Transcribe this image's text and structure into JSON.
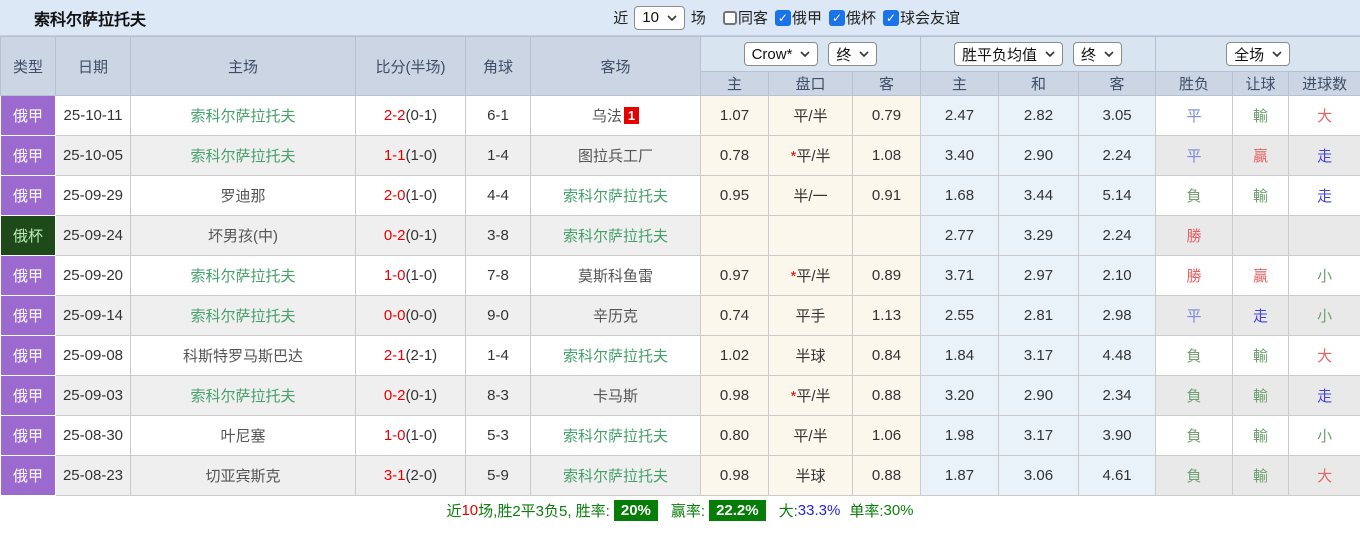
{
  "header": {
    "title": "索科尔萨拉托夫",
    "recent_label": "近",
    "recent_value": "10",
    "matches_label": "场",
    "checkboxes": [
      {
        "key": "same-away",
        "label": "同客",
        "checked": false
      },
      {
        "key": "russia-fnl",
        "label": "俄甲",
        "checked": true
      },
      {
        "key": "russia-cup",
        "label": "俄杯",
        "checked": true
      },
      {
        "key": "club-friendly",
        "label": "球会友谊",
        "checked": true
      }
    ]
  },
  "table": {
    "columns": [
      "类型",
      "日期",
      "主场",
      "比分(半场)",
      "角球",
      "客场"
    ],
    "odds_company_select": "Crow*",
    "odds_time_select": "终",
    "avg_type_select": "胜平负均值",
    "avg_time_select": "终",
    "period_select": "全场",
    "sub_columns": [
      "主",
      "盘口",
      "客",
      "主",
      "和",
      "客",
      "胜负",
      "让球",
      "进球数"
    ],
    "rows": [
      {
        "type": "俄甲",
        "cup": false,
        "date": "25-10-11",
        "home": "索科尔萨拉托夫",
        "home_subject": true,
        "score": "2-2",
        "half": "(0-1)",
        "corner": "6-1",
        "away": "乌法",
        "away_subject": false,
        "away_badge": "1",
        "odds_home": "1.07",
        "star": false,
        "handicap": "平/半",
        "odds_away": "0.79",
        "avg_home": "2.47",
        "avg_draw": "2.82",
        "avg_away": "3.05",
        "result": "平",
        "result_c": "blue",
        "hresult": "輸",
        "hresult_c": "green",
        "goals": "大",
        "goals_c": "red"
      },
      {
        "type": "俄甲",
        "cup": false,
        "date": "25-10-05",
        "home": "索科尔萨拉托夫",
        "home_subject": true,
        "score": "1-1",
        "half": "(1-0)",
        "corner": "1-4",
        "away": "图拉兵工厂",
        "away_subject": false,
        "away_badge": "",
        "odds_home": "0.78",
        "star": true,
        "handicap": "平/半",
        "odds_away": "1.08",
        "avg_home": "3.40",
        "avg_draw": "2.90",
        "avg_away": "2.24",
        "result": "平",
        "result_c": "blue",
        "hresult": "贏",
        "hresult_c": "red",
        "goals": "走",
        "goals_c": "iblue"
      },
      {
        "type": "俄甲",
        "cup": false,
        "date": "25-09-29",
        "home": "罗迪那",
        "home_subject": false,
        "score": "2-0",
        "half": "(1-0)",
        "corner": "4-4",
        "away": "索科尔萨拉托夫",
        "away_subject": true,
        "away_badge": "",
        "odds_home": "0.95",
        "star": false,
        "handicap": "半/一",
        "odds_away": "0.91",
        "avg_home": "1.68",
        "avg_draw": "3.44",
        "avg_away": "5.14",
        "result": "負",
        "result_c": "green",
        "hresult": "輸",
        "hresult_c": "green",
        "goals": "走",
        "goals_c": "iblue"
      },
      {
        "type": "俄杯",
        "cup": true,
        "date": "25-09-24",
        "home": "坏男孩(中)",
        "home_subject": false,
        "score": "0-2",
        "half": "(0-1)",
        "corner": "3-8",
        "away": "索科尔萨拉托夫",
        "away_subject": true,
        "away_badge": "",
        "odds_home": "",
        "star": false,
        "handicap": "",
        "odds_away": "",
        "avg_home": "2.77",
        "avg_draw": "3.29",
        "avg_away": "2.24",
        "result": "勝",
        "result_c": "red",
        "hresult": "",
        "hresult_c": "",
        "goals": "",
        "goals_c": ""
      },
      {
        "type": "俄甲",
        "cup": false,
        "date": "25-09-20",
        "home": "索科尔萨拉托夫",
        "home_subject": true,
        "score": "1-0",
        "half": "(1-0)",
        "corner": "7-8",
        "away": "莫斯科鱼雷",
        "away_subject": false,
        "away_badge": "",
        "odds_home": "0.97",
        "star": true,
        "handicap": "平/半",
        "odds_away": "0.89",
        "avg_home": "3.71",
        "avg_draw": "2.97",
        "avg_away": "2.10",
        "result": "勝",
        "result_c": "red",
        "hresult": "贏",
        "hresult_c": "red",
        "goals": "小",
        "goals_c": "green"
      },
      {
        "type": "俄甲",
        "cup": false,
        "date": "25-09-14",
        "home": "索科尔萨拉托夫",
        "home_subject": true,
        "score": "0-0",
        "half": "(0-0)",
        "corner": "9-0",
        "away": "辛历克",
        "away_subject": false,
        "away_badge": "",
        "odds_home": "0.74",
        "star": false,
        "handicap": "平手",
        "odds_away": "1.13",
        "avg_home": "2.55",
        "avg_draw": "2.81",
        "avg_away": "2.98",
        "result": "平",
        "result_c": "blue",
        "hresult": "走",
        "hresult_c": "iblue",
        "goals": "小",
        "goals_c": "green"
      },
      {
        "type": "俄甲",
        "cup": false,
        "date": "25-09-08",
        "home": "科斯特罗马斯巴达",
        "home_subject": false,
        "score": "2-1",
        "half": "(2-1)",
        "corner": "1-4",
        "away": "索科尔萨拉托夫",
        "away_subject": true,
        "away_badge": "",
        "odds_home": "1.02",
        "star": false,
        "handicap": "半球",
        "odds_away": "0.84",
        "avg_home": "1.84",
        "avg_draw": "3.17",
        "avg_away": "4.48",
        "result": "負",
        "result_c": "green",
        "hresult": "輸",
        "hresult_c": "green",
        "goals": "大",
        "goals_c": "red"
      },
      {
        "type": "俄甲",
        "cup": false,
        "date": "25-09-03",
        "home": "索科尔萨拉托夫",
        "home_subject": true,
        "score": "0-2",
        "half": "(0-1)",
        "corner": "8-3",
        "away": "卡马斯",
        "away_subject": false,
        "away_badge": "",
        "odds_home": "0.98",
        "star": true,
        "handicap": "平/半",
        "odds_away": "0.88",
        "avg_home": "3.20",
        "avg_draw": "2.90",
        "avg_away": "2.34",
        "result": "負",
        "result_c": "green",
        "hresult": "輸",
        "hresult_c": "green",
        "goals": "走",
        "goals_c": "iblue"
      },
      {
        "type": "俄甲",
        "cup": false,
        "date": "25-08-30",
        "home": "叶尼塞",
        "home_subject": false,
        "score": "1-0",
        "half": "(1-0)",
        "corner": "5-3",
        "away": "索科尔萨拉托夫",
        "away_subject": true,
        "away_badge": "",
        "odds_home": "0.80",
        "star": false,
        "handicap": "平/半",
        "odds_away": "1.06",
        "avg_home": "1.98",
        "avg_draw": "3.17",
        "avg_away": "3.90",
        "result": "負",
        "result_c": "green",
        "hresult": "輸",
        "hresult_c": "green",
        "goals": "小",
        "goals_c": "green"
      },
      {
        "type": "俄甲",
        "cup": false,
        "date": "25-08-23",
        "home": "切亚宾斯克",
        "home_subject": false,
        "score": "3-1",
        "half": "(2-0)",
        "corner": "5-9",
        "away": "索科尔萨拉托夫",
        "away_subject": true,
        "away_badge": "",
        "odds_home": "0.98",
        "star": false,
        "handicap": "半球",
        "odds_away": "0.88",
        "avg_home": "1.87",
        "avg_draw": "3.06",
        "avg_away": "4.61",
        "result": "負",
        "result_c": "green",
        "hresult": "輸",
        "hresult_c": "green",
        "goals": "大",
        "goals_c": "red"
      }
    ]
  },
  "footer": {
    "parts": [
      {
        "t": "近",
        "s": "g"
      },
      {
        "t": "10",
        "s": "r"
      },
      {
        "t": "场,胜2平3负5, 胜率:",
        "s": "g"
      },
      {
        "t": "20%",
        "s": "badge"
      },
      {
        "t": "赢率:",
        "s": "g gap"
      },
      {
        "t": "22.2%",
        "s": "badge"
      },
      {
        "t": "大:",
        "s": "g gap"
      },
      {
        "t": "33.3%",
        "s": "b"
      },
      {
        "t": "单率:",
        "s": "g gap"
      },
      {
        "t": "30%",
        "s": "g"
      }
    ]
  },
  "colors": {
    "league_badge": "#9c6ace",
    "cup_badge": "#1d4a18",
    "subject_team_green": "#44a169",
    "score_red": "#e80000",
    "win_red": "#e66262",
    "lose_green": "#6f9f70",
    "draw_blue": "#7b87e0",
    "push_blue": "#4343e0",
    "footer_badge_green": "#067d06",
    "checkbox_blue": "#1a73e8",
    "topbar_bg": "#dce8f5",
    "header_bg": "#ccd5e4"
  }
}
